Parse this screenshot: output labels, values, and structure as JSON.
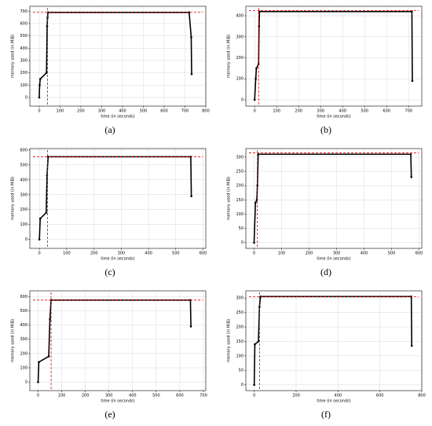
{
  "chart_data": [
    {
      "type": "line",
      "caption": "(a)",
      "xlabel": "time (in seconds)",
      "ylabel": "memory used (in MiB)",
      "x": [
        0,
        2,
        5,
        35,
        38,
        40,
        42,
        720,
        730,
        732
      ],
      "values": [
        0,
        100,
        150,
        200,
        580,
        650,
        690,
        690,
        490,
        190
      ],
      "xlim": [
        -45,
        800
      ],
      "ylim": [
        -70,
        740
      ],
      "xticks": [
        0,
        100,
        200,
        300,
        400,
        500,
        600,
        700,
        800
      ],
      "yticks": [
        0,
        100,
        200,
        300,
        400,
        500,
        600,
        700
      ],
      "grid": true,
      "color": "#000000",
      "ref_color": "#e00000",
      "ref_y": 690,
      "ref_x": 40
    },
    {
      "type": "line",
      "caption": "(b)",
      "xlabel": "time (in seconds)",
      "ylabel": "memory used (in MiB)",
      "x": [
        0,
        5,
        8,
        18,
        20,
        22,
        715,
        717
      ],
      "values": [
        0,
        100,
        150,
        170,
        350,
        420,
        420,
        90
      ],
      "xlim": [
        -40,
        760
      ],
      "ylim": [
        -30,
        445
      ],
      "xticks": [
        0,
        100,
        200,
        300,
        400,
        500,
        600,
        700
      ],
      "yticks": [
        0,
        100,
        200,
        300,
        400
      ],
      "grid": true,
      "color": "#000000",
      "ref_color": "#e00000",
      "ref_y": 425,
      "ref_x": 18
    },
    {
      "type": "line",
      "caption": "(c)",
      "xlabel": "time (in seconds)",
      "ylabel": "memory used (in MiB)",
      "x": [
        0,
        3,
        25,
        28,
        32,
        555,
        557
      ],
      "values": [
        0,
        140,
        180,
        430,
        555,
        555,
        290
      ],
      "xlim": [
        -35,
        610
      ],
      "ylim": [
        -60,
        610
      ],
      "xticks": [
        0,
        100,
        200,
        300,
        400,
        500,
        600
      ],
      "yticks": [
        0,
        100,
        200,
        300,
        400,
        500,
        600
      ],
      "grid": true,
      "color": "#000000",
      "ref_color": "#e00000",
      "ref_y": 555,
      "ref_x": 30
    },
    {
      "type": "line",
      "caption": "(d)",
      "xlabel": "time (in seconds)",
      "ylabel": "memory used (in MiB)",
      "x": [
        0,
        5,
        10,
        12,
        15,
        570,
        572
      ],
      "values": [
        0,
        140,
        150,
        200,
        310,
        310,
        230
      ],
      "xlim": [
        -30,
        610
      ],
      "ylim": [
        -20,
        330
      ],
      "xticks": [
        0,
        100,
        200,
        300,
        400,
        500,
        600
      ],
      "yticks": [
        0,
        50,
        100,
        150,
        200,
        250,
        300
      ],
      "grid": true,
      "color": "#000000",
      "ref_color": "#e00000",
      "ref_y": 315,
      "ref_x": 12
    },
    {
      "type": "line",
      "caption": "(e)",
      "xlabel": "time (in seconds)",
      "ylabel": "memory used (in MiB)",
      "x": [
        0,
        3,
        45,
        50,
        55,
        645,
        647
      ],
      "values": [
        0,
        140,
        180,
        440,
        575,
        575,
        390
      ],
      "xlim": [
        -35,
        710
      ],
      "ylim": [
        -60,
        640
      ],
      "xticks": [
        0,
        100,
        200,
        300,
        400,
        500,
        600,
        700
      ],
      "yticks": [
        0,
        100,
        200,
        300,
        400,
        500,
        600
      ],
      "grid": true,
      "color": "#000000",
      "ref_color": "#e00000",
      "ref_y": 575,
      "ref_x": 55
    },
    {
      "type": "line",
      "caption": "(f)",
      "xlabel": "time (in seconds)",
      "ylabel": "memory used (in MiB)",
      "x": [
        0,
        3,
        20,
        25,
        30,
        750,
        752
      ],
      "values": [
        0,
        140,
        150,
        270,
        305,
        305,
        135
      ],
      "xlim": [
        -40,
        800
      ],
      "ylim": [
        -20,
        325
      ],
      "xticks": [
        0,
        200,
        400,
        600,
        800
      ],
      "yticks": [
        0,
        50,
        100,
        150,
        200,
        250,
        300
      ],
      "grid": true,
      "color": "#000000",
      "ref_color": "#e00000",
      "ref_y": 305,
      "ref_x": 25
    }
  ]
}
